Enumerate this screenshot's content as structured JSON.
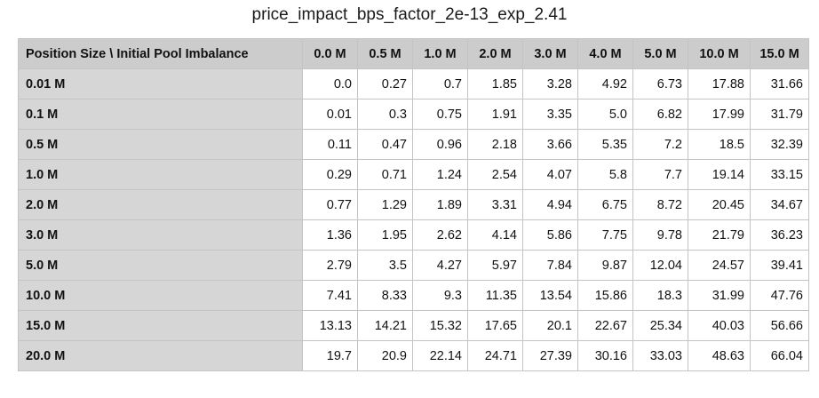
{
  "title": "price_impact_bps_factor_2e-13_exp_2.41",
  "chart_data": {
    "type": "table",
    "title": "price_impact_bps_factor_2e-13_exp_2.41",
    "corner_header": "Position Size \\ Initial Pool Imbalance",
    "columns": [
      "0.0 M",
      "0.5 M",
      "1.0 M",
      "2.0 M",
      "3.0 M",
      "4.0 M",
      "5.0 M",
      "10.0 M",
      "15.0 M"
    ],
    "rows": [
      {
        "label": "0.01 M",
        "values": [
          "0.0",
          "0.27",
          "0.7",
          "1.85",
          "3.28",
          "4.92",
          "6.73",
          "17.88",
          "31.66"
        ]
      },
      {
        "label": "0.1 M",
        "values": [
          "0.01",
          "0.3",
          "0.75",
          "1.91",
          "3.35",
          "5.0",
          "6.82",
          "17.99",
          "31.79"
        ]
      },
      {
        "label": "0.5 M",
        "values": [
          "0.11",
          "0.47",
          "0.96",
          "2.18",
          "3.66",
          "5.35",
          "7.2",
          "18.5",
          "32.39"
        ]
      },
      {
        "label": "1.0 M",
        "values": [
          "0.29",
          "0.71",
          "1.24",
          "2.54",
          "4.07",
          "5.8",
          "7.7",
          "19.14",
          "33.15"
        ]
      },
      {
        "label": "2.0 M",
        "values": [
          "0.77",
          "1.29",
          "1.89",
          "3.31",
          "4.94",
          "6.75",
          "8.72",
          "20.45",
          "34.67"
        ]
      },
      {
        "label": "3.0 M",
        "values": [
          "1.36",
          "1.95",
          "2.62",
          "4.14",
          "5.86",
          "7.75",
          "9.78",
          "21.79",
          "36.23"
        ]
      },
      {
        "label": "5.0 M",
        "values": [
          "2.79",
          "3.5",
          "4.27",
          "5.97",
          "7.84",
          "9.87",
          "12.04",
          "24.57",
          "39.41"
        ]
      },
      {
        "label": "10.0 M",
        "values": [
          "7.41",
          "8.33",
          "9.3",
          "11.35",
          "13.54",
          "15.86",
          "18.3",
          "31.99",
          "47.76"
        ]
      },
      {
        "label": "15.0 M",
        "values": [
          "13.13",
          "14.21",
          "15.32",
          "17.65",
          "20.1",
          "22.67",
          "25.34",
          "40.03",
          "56.66"
        ]
      },
      {
        "label": "20.0 M",
        "values": [
          "19.7",
          "20.9",
          "22.14",
          "24.71",
          "27.39",
          "30.16",
          "33.03",
          "48.63",
          "66.04"
        ]
      }
    ],
    "colors": {
      "header_bg": "#cccccc",
      "row_header_bg": "#d6d6d6",
      "cell_bg": "#ffffff",
      "border": "#c4c4c4"
    }
  }
}
